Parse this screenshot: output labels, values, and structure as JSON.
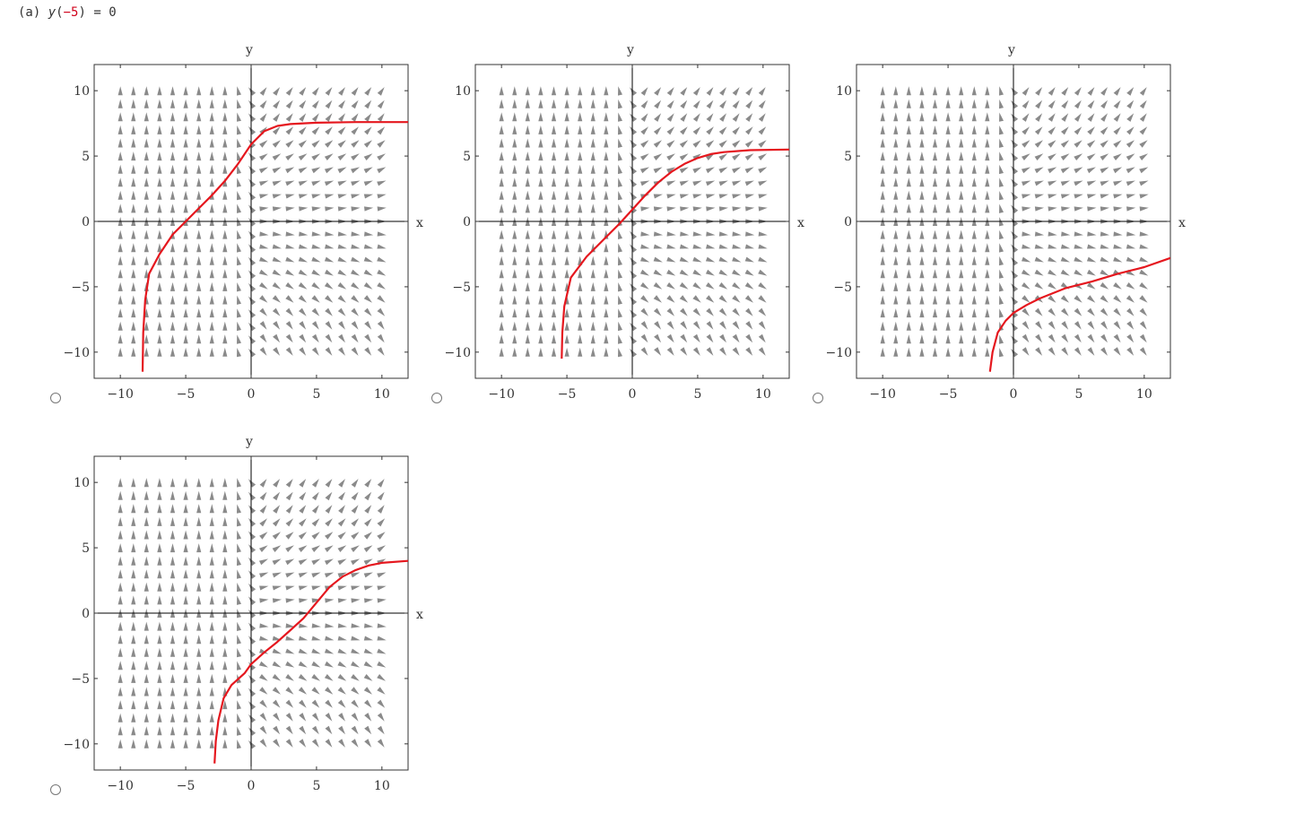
{
  "question": {
    "label": "(a)",
    "var": "y",
    "open": "(",
    "arg": "−5",
    "close": ")",
    "rhs": "= 0"
  },
  "axes": {
    "x_label": "x",
    "y_label": "y",
    "x_ticks": [
      "−10",
      "−5",
      "0",
      "5",
      "10"
    ],
    "y_ticks": [
      "10",
      "5",
      "0",
      "−5",
      "−10"
    ]
  },
  "colors": {
    "curve": "#e5171e",
    "arrow": "#8a8a8a",
    "axis": "#000000",
    "frame": "#333333"
  },
  "options": [
    {
      "name": "option-1",
      "curve": [
        [
          -8.3,
          -11.5
        ],
        [
          -8.25,
          -8.5
        ],
        [
          -8.1,
          -6
        ],
        [
          -7.8,
          -4
        ],
        [
          -7,
          -2.5
        ],
        [
          -6,
          -1
        ],
        [
          -5,
          0
        ],
        [
          -4,
          1
        ],
        [
          -3,
          2
        ],
        [
          -2,
          3.1
        ],
        [
          -1,
          4.4
        ],
        [
          0,
          5.9
        ],
        [
          1,
          6.9
        ],
        [
          2,
          7.3
        ],
        [
          3,
          7.45
        ],
        [
          5,
          7.55
        ],
        [
          8,
          7.6
        ],
        [
          12,
          7.6
        ]
      ]
    },
    {
      "name": "option-2",
      "curve": [
        [
          -5.4,
          -10.5
        ],
        [
          -5.35,
          -8.5
        ],
        [
          -5.2,
          -6.5
        ],
        [
          -4.7,
          -4.3
        ],
        [
          -3.5,
          -2.7
        ],
        [
          -2,
          -1.2
        ],
        [
          -1,
          -0.2
        ],
        [
          0,
          0.9
        ],
        [
          1,
          2
        ],
        [
          2,
          3
        ],
        [
          3,
          3.8
        ],
        [
          4,
          4.4
        ],
        [
          5,
          4.85
        ],
        [
          6,
          5.15
        ],
        [
          7,
          5.3
        ],
        [
          9,
          5.45
        ],
        [
          12,
          5.5
        ]
      ]
    },
    {
      "name": "option-3",
      "curve": [
        [
          -1.8,
          -11.5
        ],
        [
          -1.6,
          -10
        ],
        [
          -1.2,
          -8.5
        ],
        [
          -0.6,
          -7.6
        ],
        [
          0,
          -7
        ],
        [
          1,
          -6.4
        ],
        [
          2,
          -5.9
        ],
        [
          4,
          -5.1
        ],
        [
          6,
          -4.6
        ],
        [
          8,
          -4
        ],
        [
          10,
          -3.5
        ],
        [
          12,
          -2.8
        ]
      ]
    },
    {
      "name": "option-4",
      "curve": [
        [
          -2.8,
          -11.5
        ],
        [
          -2.7,
          -9.8
        ],
        [
          -2.5,
          -8.2
        ],
        [
          -2.1,
          -6.5
        ],
        [
          -1.5,
          -5.5
        ],
        [
          -0.5,
          -4.6
        ],
        [
          0,
          -3.9
        ],
        [
          1,
          -3
        ],
        [
          2,
          -2.2
        ],
        [
          3,
          -1.3
        ],
        [
          4,
          -0.4
        ],
        [
          5,
          0.8
        ],
        [
          6,
          2
        ],
        [
          7,
          2.8
        ],
        [
          8,
          3.3
        ],
        [
          9,
          3.65
        ],
        [
          10,
          3.85
        ],
        [
          12,
          4
        ]
      ]
    }
  ]
}
